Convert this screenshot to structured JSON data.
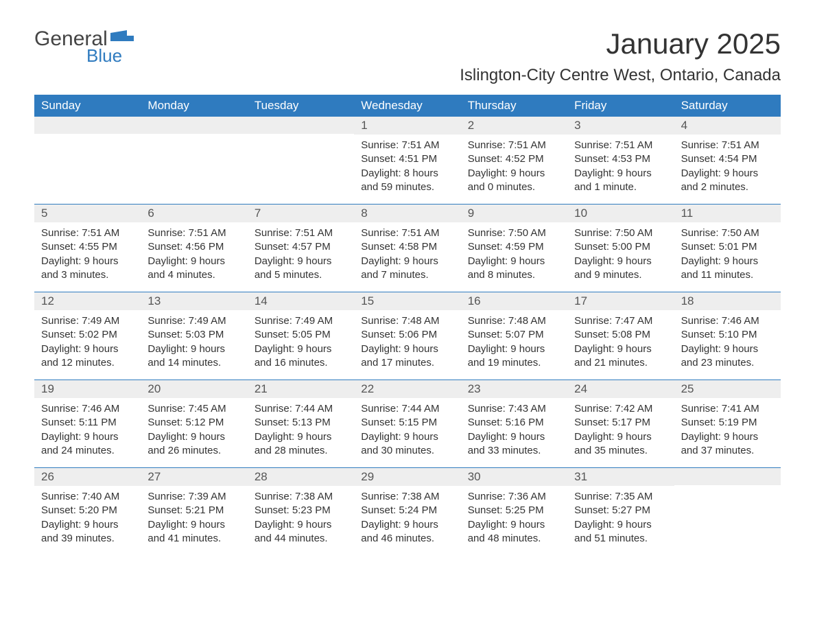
{
  "brand": {
    "word1": "General",
    "word2": "Blue",
    "flag_color": "#2f7bbf"
  },
  "title": "January 2025",
  "location": "Islington-City Centre West, Ontario, Canada",
  "colors": {
    "header_bg": "#2f7bbf",
    "header_text": "#ffffff",
    "daynum_bg": "#eeeeee",
    "body_text": "#333333",
    "rule": "#2f7bbf"
  },
  "day_labels": [
    "Sunday",
    "Monday",
    "Tuesday",
    "Wednesday",
    "Thursday",
    "Friday",
    "Saturday"
  ],
  "weeks": [
    [
      {
        "n": "",
        "sr": "",
        "ss": "",
        "d1": "",
        "d2": ""
      },
      {
        "n": "",
        "sr": "",
        "ss": "",
        "d1": "",
        "d2": ""
      },
      {
        "n": "",
        "sr": "",
        "ss": "",
        "d1": "",
        "d2": ""
      },
      {
        "n": "1",
        "sr": "Sunrise: 7:51 AM",
        "ss": "Sunset: 4:51 PM",
        "d1": "Daylight: 8 hours",
        "d2": "and 59 minutes."
      },
      {
        "n": "2",
        "sr": "Sunrise: 7:51 AM",
        "ss": "Sunset: 4:52 PM",
        "d1": "Daylight: 9 hours",
        "d2": "and 0 minutes."
      },
      {
        "n": "3",
        "sr": "Sunrise: 7:51 AM",
        "ss": "Sunset: 4:53 PM",
        "d1": "Daylight: 9 hours",
        "d2": "and 1 minute."
      },
      {
        "n": "4",
        "sr": "Sunrise: 7:51 AM",
        "ss": "Sunset: 4:54 PM",
        "d1": "Daylight: 9 hours",
        "d2": "and 2 minutes."
      }
    ],
    [
      {
        "n": "5",
        "sr": "Sunrise: 7:51 AM",
        "ss": "Sunset: 4:55 PM",
        "d1": "Daylight: 9 hours",
        "d2": "and 3 minutes."
      },
      {
        "n": "6",
        "sr": "Sunrise: 7:51 AM",
        "ss": "Sunset: 4:56 PM",
        "d1": "Daylight: 9 hours",
        "d2": "and 4 minutes."
      },
      {
        "n": "7",
        "sr": "Sunrise: 7:51 AM",
        "ss": "Sunset: 4:57 PM",
        "d1": "Daylight: 9 hours",
        "d2": "and 5 minutes."
      },
      {
        "n": "8",
        "sr": "Sunrise: 7:51 AM",
        "ss": "Sunset: 4:58 PM",
        "d1": "Daylight: 9 hours",
        "d2": "and 7 minutes."
      },
      {
        "n": "9",
        "sr": "Sunrise: 7:50 AM",
        "ss": "Sunset: 4:59 PM",
        "d1": "Daylight: 9 hours",
        "d2": "and 8 minutes."
      },
      {
        "n": "10",
        "sr": "Sunrise: 7:50 AM",
        "ss": "Sunset: 5:00 PM",
        "d1": "Daylight: 9 hours",
        "d2": "and 9 minutes."
      },
      {
        "n": "11",
        "sr": "Sunrise: 7:50 AM",
        "ss": "Sunset: 5:01 PM",
        "d1": "Daylight: 9 hours",
        "d2": "and 11 minutes."
      }
    ],
    [
      {
        "n": "12",
        "sr": "Sunrise: 7:49 AM",
        "ss": "Sunset: 5:02 PM",
        "d1": "Daylight: 9 hours",
        "d2": "and 12 minutes."
      },
      {
        "n": "13",
        "sr": "Sunrise: 7:49 AM",
        "ss": "Sunset: 5:03 PM",
        "d1": "Daylight: 9 hours",
        "d2": "and 14 minutes."
      },
      {
        "n": "14",
        "sr": "Sunrise: 7:49 AM",
        "ss": "Sunset: 5:05 PM",
        "d1": "Daylight: 9 hours",
        "d2": "and 16 minutes."
      },
      {
        "n": "15",
        "sr": "Sunrise: 7:48 AM",
        "ss": "Sunset: 5:06 PM",
        "d1": "Daylight: 9 hours",
        "d2": "and 17 minutes."
      },
      {
        "n": "16",
        "sr": "Sunrise: 7:48 AM",
        "ss": "Sunset: 5:07 PM",
        "d1": "Daylight: 9 hours",
        "d2": "and 19 minutes."
      },
      {
        "n": "17",
        "sr": "Sunrise: 7:47 AM",
        "ss": "Sunset: 5:08 PM",
        "d1": "Daylight: 9 hours",
        "d2": "and 21 minutes."
      },
      {
        "n": "18",
        "sr": "Sunrise: 7:46 AM",
        "ss": "Sunset: 5:10 PM",
        "d1": "Daylight: 9 hours",
        "d2": "and 23 minutes."
      }
    ],
    [
      {
        "n": "19",
        "sr": "Sunrise: 7:46 AM",
        "ss": "Sunset: 5:11 PM",
        "d1": "Daylight: 9 hours",
        "d2": "and 24 minutes."
      },
      {
        "n": "20",
        "sr": "Sunrise: 7:45 AM",
        "ss": "Sunset: 5:12 PM",
        "d1": "Daylight: 9 hours",
        "d2": "and 26 minutes."
      },
      {
        "n": "21",
        "sr": "Sunrise: 7:44 AM",
        "ss": "Sunset: 5:13 PM",
        "d1": "Daylight: 9 hours",
        "d2": "and 28 minutes."
      },
      {
        "n": "22",
        "sr": "Sunrise: 7:44 AM",
        "ss": "Sunset: 5:15 PM",
        "d1": "Daylight: 9 hours",
        "d2": "and 30 minutes."
      },
      {
        "n": "23",
        "sr": "Sunrise: 7:43 AM",
        "ss": "Sunset: 5:16 PM",
        "d1": "Daylight: 9 hours",
        "d2": "and 33 minutes."
      },
      {
        "n": "24",
        "sr": "Sunrise: 7:42 AM",
        "ss": "Sunset: 5:17 PM",
        "d1": "Daylight: 9 hours",
        "d2": "and 35 minutes."
      },
      {
        "n": "25",
        "sr": "Sunrise: 7:41 AM",
        "ss": "Sunset: 5:19 PM",
        "d1": "Daylight: 9 hours",
        "d2": "and 37 minutes."
      }
    ],
    [
      {
        "n": "26",
        "sr": "Sunrise: 7:40 AM",
        "ss": "Sunset: 5:20 PM",
        "d1": "Daylight: 9 hours",
        "d2": "and 39 minutes."
      },
      {
        "n": "27",
        "sr": "Sunrise: 7:39 AM",
        "ss": "Sunset: 5:21 PM",
        "d1": "Daylight: 9 hours",
        "d2": "and 41 minutes."
      },
      {
        "n": "28",
        "sr": "Sunrise: 7:38 AM",
        "ss": "Sunset: 5:23 PM",
        "d1": "Daylight: 9 hours",
        "d2": "and 44 minutes."
      },
      {
        "n": "29",
        "sr": "Sunrise: 7:38 AM",
        "ss": "Sunset: 5:24 PM",
        "d1": "Daylight: 9 hours",
        "d2": "and 46 minutes."
      },
      {
        "n": "30",
        "sr": "Sunrise: 7:36 AM",
        "ss": "Sunset: 5:25 PM",
        "d1": "Daylight: 9 hours",
        "d2": "and 48 minutes."
      },
      {
        "n": "31",
        "sr": "Sunrise: 7:35 AM",
        "ss": "Sunset: 5:27 PM",
        "d1": "Daylight: 9 hours",
        "d2": "and 51 minutes."
      },
      {
        "n": "",
        "sr": "",
        "ss": "",
        "d1": "",
        "d2": ""
      }
    ]
  ]
}
